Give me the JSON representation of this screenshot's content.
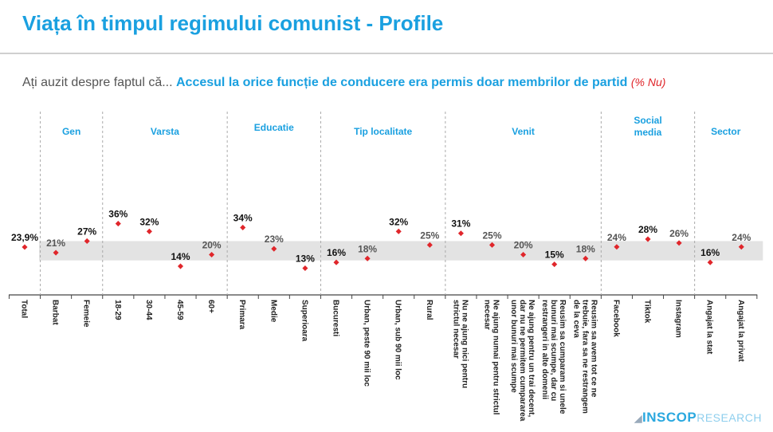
{
  "title": "Viața în timpul regimului comunist - Profile",
  "question": {
    "prefix": "Ați auzit despre faptul că...",
    "highlight": "Accesul la orice funcție de conducere era permis doar membrilor de partid",
    "suffix": "(% Nu)"
  },
  "logo": {
    "brand": "INSCOP",
    "suffix": "RESEARCH"
  },
  "colors": {
    "accent": "#1aa0e0",
    "marker": "#e0262b",
    "band": "#e3e3e3"
  },
  "chart_data": {
    "type": "scatter",
    "groups": [
      {
        "name": "",
        "count": 1
      },
      {
        "name": "Gen",
        "count": 2
      },
      {
        "name": "Varsta",
        "count": 4
      },
      {
        "name": "Educatie",
        "count": 3
      },
      {
        "name": "Tip localitate",
        "count": 4
      },
      {
        "name": "Venit",
        "count": 5
      },
      {
        "name": "Social media",
        "count": 3
      },
      {
        "name": "Sector",
        "count": 2
      }
    ],
    "categories": [
      "Total",
      "Barbat",
      "Femeie",
      "18-29",
      "30-44",
      "45-59",
      "60+",
      "Primara",
      "Medie",
      "Superioara",
      "Bucuresti",
      "Urban, peste 90 mii loc",
      "Urban, sub 90 mii loc",
      "Rural",
      "Nu ne ajung nici pentru strictul necesar",
      "Ne ajung numai pentru strictul necesar",
      "Ne ajung pentru un trai decent, dar nu ne permitem cumpararea unor bunuri mai scumpe",
      "Reusim sa cumparam si unele bunuri mai scumpe, dar cu restrangeri in alte domenii",
      "Reusim sa avem tot ce ne trebuie, fara sa ne restrangem de la ceva",
      "Facebook",
      "Tiktok",
      "Instagram",
      "Angajat la stat",
      "Angajat la privat"
    ],
    "values": [
      23.9,
      21,
      27,
      36,
      32,
      14,
      20,
      34,
      23,
      13,
      16,
      18,
      32,
      25,
      31,
      25,
      20,
      15,
      18,
      24,
      28,
      26,
      16,
      24
    ],
    "value_labels": [
      "23,9%",
      "21%",
      "27%",
      "36%",
      "32%",
      "14%",
      "20%",
      "34%",
      "23%",
      "13%",
      "16%",
      "18%",
      "32%",
      "25%",
      "31%",
      "25%",
      "20%",
      "15%",
      "18%",
      "24%",
      "28%",
      "26%",
      "16%",
      "24%"
    ],
    "reference_band": [
      17,
      27
    ],
    "grid": false,
    "legend": "none"
  }
}
